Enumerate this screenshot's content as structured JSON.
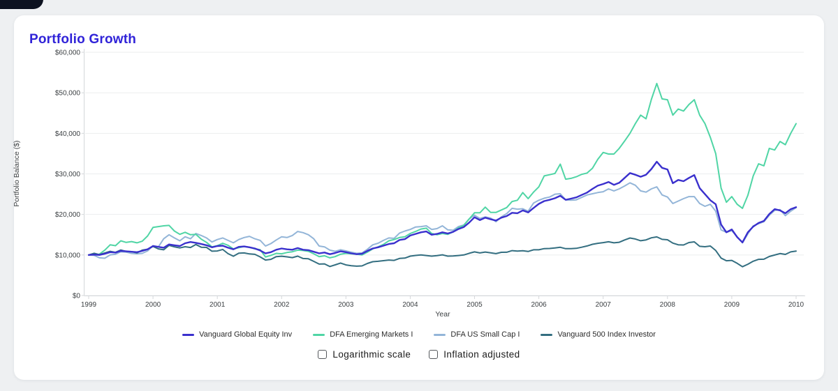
{
  "page": {
    "title": "Portfolio Growth"
  },
  "controls": {
    "logarithmic": {
      "label": "Logarithmic scale",
      "checked": false
    },
    "inflation": {
      "label": "Inflation adjusted",
      "checked": false
    }
  },
  "chart_data": {
    "type": "line",
    "title": "Portfolio Growth",
    "xlabel": "Year",
    "ylabel": "Portfolio Balance ($)",
    "x_start_year": 1999,
    "x_interval_months": 1,
    "x_ticks": [
      "1999",
      "2000",
      "2001",
      "2002",
      "2003",
      "2004",
      "2005",
      "2006",
      "2007",
      "2008",
      "2009",
      "2010"
    ],
    "y_ticks": [
      "$0",
      "$10,000",
      "$20,000",
      "$30,000",
      "$40,000",
      "$50,000",
      "$60,000"
    ],
    "y_tick_values": [
      0,
      10000,
      20000,
      30000,
      40000,
      50000,
      60000
    ],
    "ylim": [
      0,
      60000
    ],
    "xlim": [
      1999,
      2010
    ],
    "grid": "horizontal",
    "legend_position": "bottom",
    "series": [
      {
        "name": "Vanguard Global Equity Inv",
        "color": "#3a30cd",
        "width": 2.4,
        "z": 4,
        "values": [
          10000,
          10100,
          10000,
          10300,
          10700,
          10600,
          11000,
          10900,
          10800,
          10700,
          11000,
          11400,
          12200,
          12000,
          11800,
          12600,
          12400,
          12200,
          12900,
          13200,
          13000,
          12700,
          12400,
          11900,
          12200,
          12300,
          11800,
          11400,
          12000,
          12100,
          11900,
          11600,
          11100,
          10400,
          10700,
          11300,
          11600,
          11400,
          11300,
          11700,
          11300,
          11200,
          10800,
          10400,
          10600,
          10200,
          10500,
          10900,
          10700,
          10400,
          10200,
          10300,
          11000,
          11600,
          11900,
          12300,
          12700,
          12900,
          13700,
          13900,
          14800,
          15200,
          15600,
          15800,
          15000,
          15200,
          15600,
          15300,
          15700,
          16400,
          16900,
          18000,
          19300,
          18600,
          19200,
          18800,
          18500,
          19200,
          19600,
          20400,
          20300,
          21000,
          20500,
          21600,
          22600,
          23300,
          23600,
          24000,
          24600,
          23600,
          23900,
          24200,
          24800,
          25400,
          26300,
          27100,
          27500,
          28000,
          27300,
          27800,
          29000,
          30200,
          29800,
          29300,
          29800,
          31200,
          33000,
          31500,
          31100,
          27700,
          28500,
          28200,
          29000,
          29700,
          26500,
          25000,
          23500,
          22500,
          17500,
          15600,
          16300,
          14400,
          13100,
          15600,
          17000,
          17900,
          18400,
          20100,
          21300,
          21000,
          20300,
          21300,
          21800
        ]
      },
      {
        "name": "DFA Emerging Markets I",
        "color": "#50d5a5",
        "width": 2,
        "z": 2,
        "values": [
          10000,
          10050,
          10200,
          11200,
          12500,
          12300,
          13500,
          13100,
          13300,
          13000,
          13400,
          14700,
          16800,
          17000,
          17200,
          17300,
          15900,
          15100,
          15600,
          15000,
          15100,
          13900,
          13100,
          12000,
          12300,
          12900,
          12400,
          11500,
          11800,
          12100,
          11900,
          11500,
          11300,
          9500,
          9900,
          10400,
          10300,
          10600,
          10800,
          11200,
          11100,
          10900,
          10300,
          9600,
          9800,
          9300,
          9600,
          10200,
          10400,
          10300,
          10200,
          10000,
          10700,
          11500,
          12000,
          12600,
          13500,
          13800,
          14300,
          14500,
          15300,
          15800,
          16400,
          16600,
          15300,
          15000,
          15300,
          15100,
          15700,
          16700,
          17300,
          18900,
          20400,
          20400,
          21800,
          20500,
          20500,
          21100,
          21700,
          23200,
          23500,
          25400,
          23900,
          25500,
          26800,
          29500,
          29800,
          30100,
          32400,
          28700,
          28900,
          29300,
          29900,
          30200,
          31400,
          33600,
          35300,
          34900,
          34900,
          36300,
          38100,
          40000,
          42400,
          44500,
          43600,
          48400,
          52300,
          48500,
          48300,
          44500,
          46000,
          45500,
          47100,
          48300,
          44500,
          42400,
          39000,
          35000,
          26500,
          23000,
          24400,
          22500,
          21500,
          24700,
          29500,
          32500,
          32000,
          36300,
          35900,
          38000,
          37200,
          40000,
          42400
        ]
      },
      {
        "name": "DFA US Small Cap I",
        "color": "#93b5d8",
        "width": 2,
        "z": 1,
        "values": [
          10000,
          9900,
          9300,
          9200,
          10000,
          10200,
          10800,
          10700,
          10400,
          10300,
          10400,
          11000,
          12300,
          12000,
          14000,
          15000,
          14200,
          13500,
          14500,
          14000,
          15300,
          14800,
          14200,
          13200,
          13800,
          14200,
          13600,
          13000,
          13800,
          14300,
          14600,
          14000,
          13600,
          12200,
          12800,
          13700,
          14500,
          14300,
          14800,
          15800,
          15500,
          15000,
          14000,
          12200,
          12000,
          11200,
          10900,
          11300,
          11000,
          10700,
          10400,
          10500,
          11400,
          12500,
          12900,
          13600,
          14200,
          14100,
          15400,
          15900,
          16300,
          16900,
          17000,
          17200,
          16300,
          16500,
          17200,
          16200,
          16100,
          17000,
          17400,
          18900,
          19800,
          19000,
          19400,
          19100,
          18200,
          19400,
          20200,
          21500,
          21300,
          21400,
          20800,
          22800,
          23500,
          24000,
          24300,
          25000,
          25100,
          23600,
          23500,
          23600,
          24200,
          24800,
          25100,
          25400,
          25600,
          26300,
          25800,
          26300,
          27000,
          27800,
          27200,
          25800,
          25500,
          26300,
          26800,
          24800,
          24300,
          22700,
          23300,
          23900,
          24400,
          24400,
          22700,
          22000,
          22500,
          20800,
          16200,
          15600,
          16000,
          14500,
          13000,
          15200,
          17200,
          17700,
          18200,
          19800,
          21000,
          21200,
          19700,
          20800,
          21700
        ]
      },
      {
        "name": "Vanguard 500 Index Investor",
        "color": "#336e80",
        "width": 2,
        "z": 3,
        "values": [
          10000,
          10410,
          10090,
          10490,
          10900,
          10640,
          11230,
          10880,
          10830,
          10530,
          11200,
          11420,
          12100,
          11500,
          11280,
          12370,
          12000,
          11750,
          12040,
          11850,
          12580,
          11920,
          11870,
          10930,
          10990,
          11370,
          10340,
          9690,
          10440,
          10510,
          10260,
          10160,
          9520,
          8750,
          8920,
          9600,
          9690,
          9540,
          9360,
          9720,
          9130,
          9060,
          8420,
          7760,
          7810,
          7160,
          7570,
          8020,
          7550,
          7350,
          7240,
          7310,
          7910,
          8330,
          8440,
          8590,
          8750,
          8660,
          9150,
          9230,
          9710,
          9880,
          10020,
          9870,
          9710,
          9850,
          10040,
          9710,
          9750,
          9860,
          10010,
          10410,
          10760,
          10500,
          10720,
          10530,
          10330,
          10660,
          10670,
          11070,
          10970,
          11060,
          10870,
          11280,
          11280,
          11570,
          11610,
          11750,
          11900,
          11560,
          11570,
          11640,
          11920,
          12230,
          12630,
          12870,
          13050,
          13250,
          12990,
          13130,
          13710,
          14190,
          13950,
          13520,
          13720,
          14230,
          14460,
          13850,
          13750,
          12930,
          12510,
          12460,
          13070,
          13240,
          12130,
          12030,
          12200,
          11110,
          9240,
          8580,
          8670,
          7940,
          7100,
          7720,
          8460,
          8930,
          8950,
          9630,
          9980,
          10350,
          10150,
          10760,
          10960
        ]
      }
    ]
  }
}
